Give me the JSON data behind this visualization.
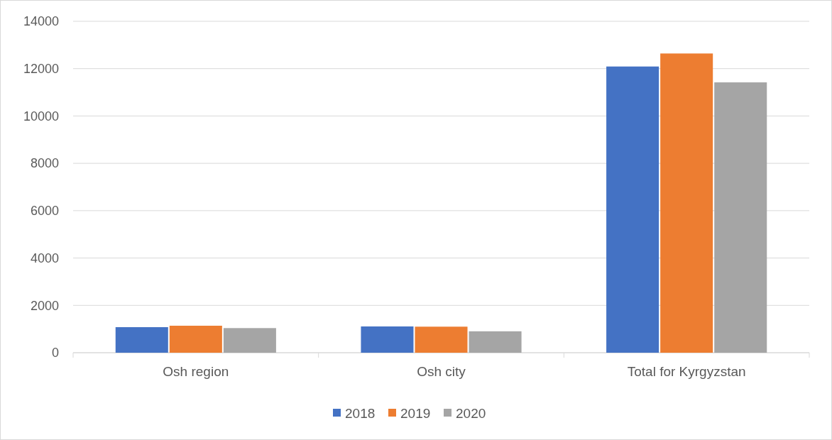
{
  "chart_data": {
    "type": "bar",
    "categories": [
      "Osh region",
      "Osh city",
      "Total for Kyrgyzstan"
    ],
    "series": [
      {
        "name": "2018",
        "color": "#4472c4",
        "values": [
          1080,
          1110,
          12090
        ]
      },
      {
        "name": "2019",
        "color": "#ed7d31",
        "values": [
          1140,
          1100,
          12640
        ]
      },
      {
        "name": "2020",
        "color": "#a5a5a5",
        "values": [
          1040,
          905,
          11420
        ]
      }
    ],
    "ylim": [
      0,
      14000
    ],
    "yticks": [
      0,
      2000,
      4000,
      6000,
      8000,
      10000,
      12000,
      14000
    ],
    "grid": "y",
    "legend": "bottom"
  }
}
